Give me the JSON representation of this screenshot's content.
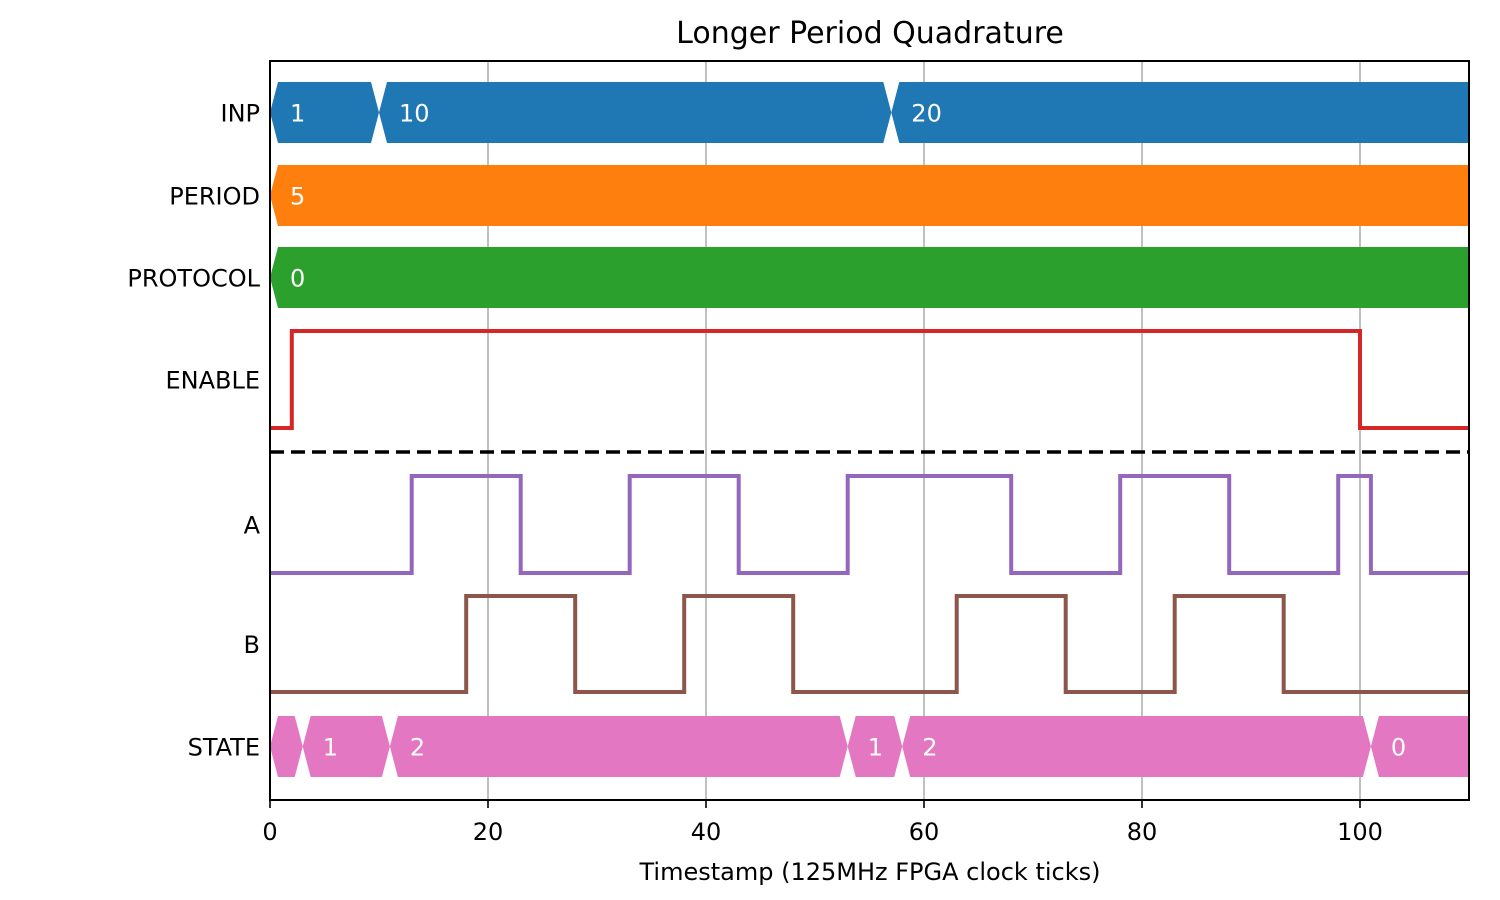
{
  "chart_data": {
    "type": "timing-diagram",
    "title": "Longer Period Quadrature",
    "xlabel": "Timestamp (125MHz FPGA clock ticks)",
    "xlim": [
      0,
      110
    ],
    "x_ticks": [
      0,
      20,
      40,
      60,
      80,
      100
    ],
    "grid": "vertical",
    "separator_after": "ENABLE",
    "signals": [
      {
        "name": "INP",
        "kind": "bus",
        "color": "#1f77b4",
        "segments": [
          {
            "start": 0,
            "value": "1"
          },
          {
            "start": 10,
            "value": "10"
          },
          {
            "start": 57,
            "value": "20"
          }
        ]
      },
      {
        "name": "PERIOD",
        "kind": "bus",
        "color": "#ff7f0e",
        "segments": [
          {
            "start": 0,
            "value": "5"
          }
        ]
      },
      {
        "name": "PROTOCOL",
        "kind": "bus",
        "color": "#2ca02c",
        "segments": [
          {
            "start": 0,
            "value": "0"
          }
        ]
      },
      {
        "name": "ENABLE",
        "kind": "bit",
        "color": "#d62728",
        "initial": 0,
        "transitions": [
          [
            2,
            1
          ],
          [
            100,
            0
          ]
        ]
      },
      {
        "name": "A",
        "kind": "bit",
        "color": "#9467bd",
        "initial": 0,
        "transitions": [
          [
            13,
            1
          ],
          [
            23,
            0
          ],
          [
            33,
            1
          ],
          [
            43,
            0
          ],
          [
            53,
            1
          ],
          [
            68,
            0
          ],
          [
            78,
            1
          ],
          [
            88,
            0
          ],
          [
            98,
            1
          ],
          [
            101,
            0
          ]
        ]
      },
      {
        "name": "B",
        "kind": "bit",
        "color": "#8c564b",
        "initial": 0,
        "transitions": [
          [
            18,
            1
          ],
          [
            28,
            0
          ],
          [
            38,
            1
          ],
          [
            48,
            0
          ],
          [
            63,
            1
          ],
          [
            73,
            0
          ],
          [
            83,
            1
          ],
          [
            93,
            0
          ]
        ]
      },
      {
        "name": "STATE",
        "kind": "bus",
        "color": "#e377c2",
        "segments": [
          {
            "start": 0,
            "value": ""
          },
          {
            "start": 3,
            "value": "1"
          },
          {
            "start": 11,
            "value": "2"
          },
          {
            "start": 53,
            "value": "1"
          },
          {
            "start": 58,
            "value": "2"
          },
          {
            "start": 101,
            "value": "0"
          }
        ]
      }
    ]
  }
}
